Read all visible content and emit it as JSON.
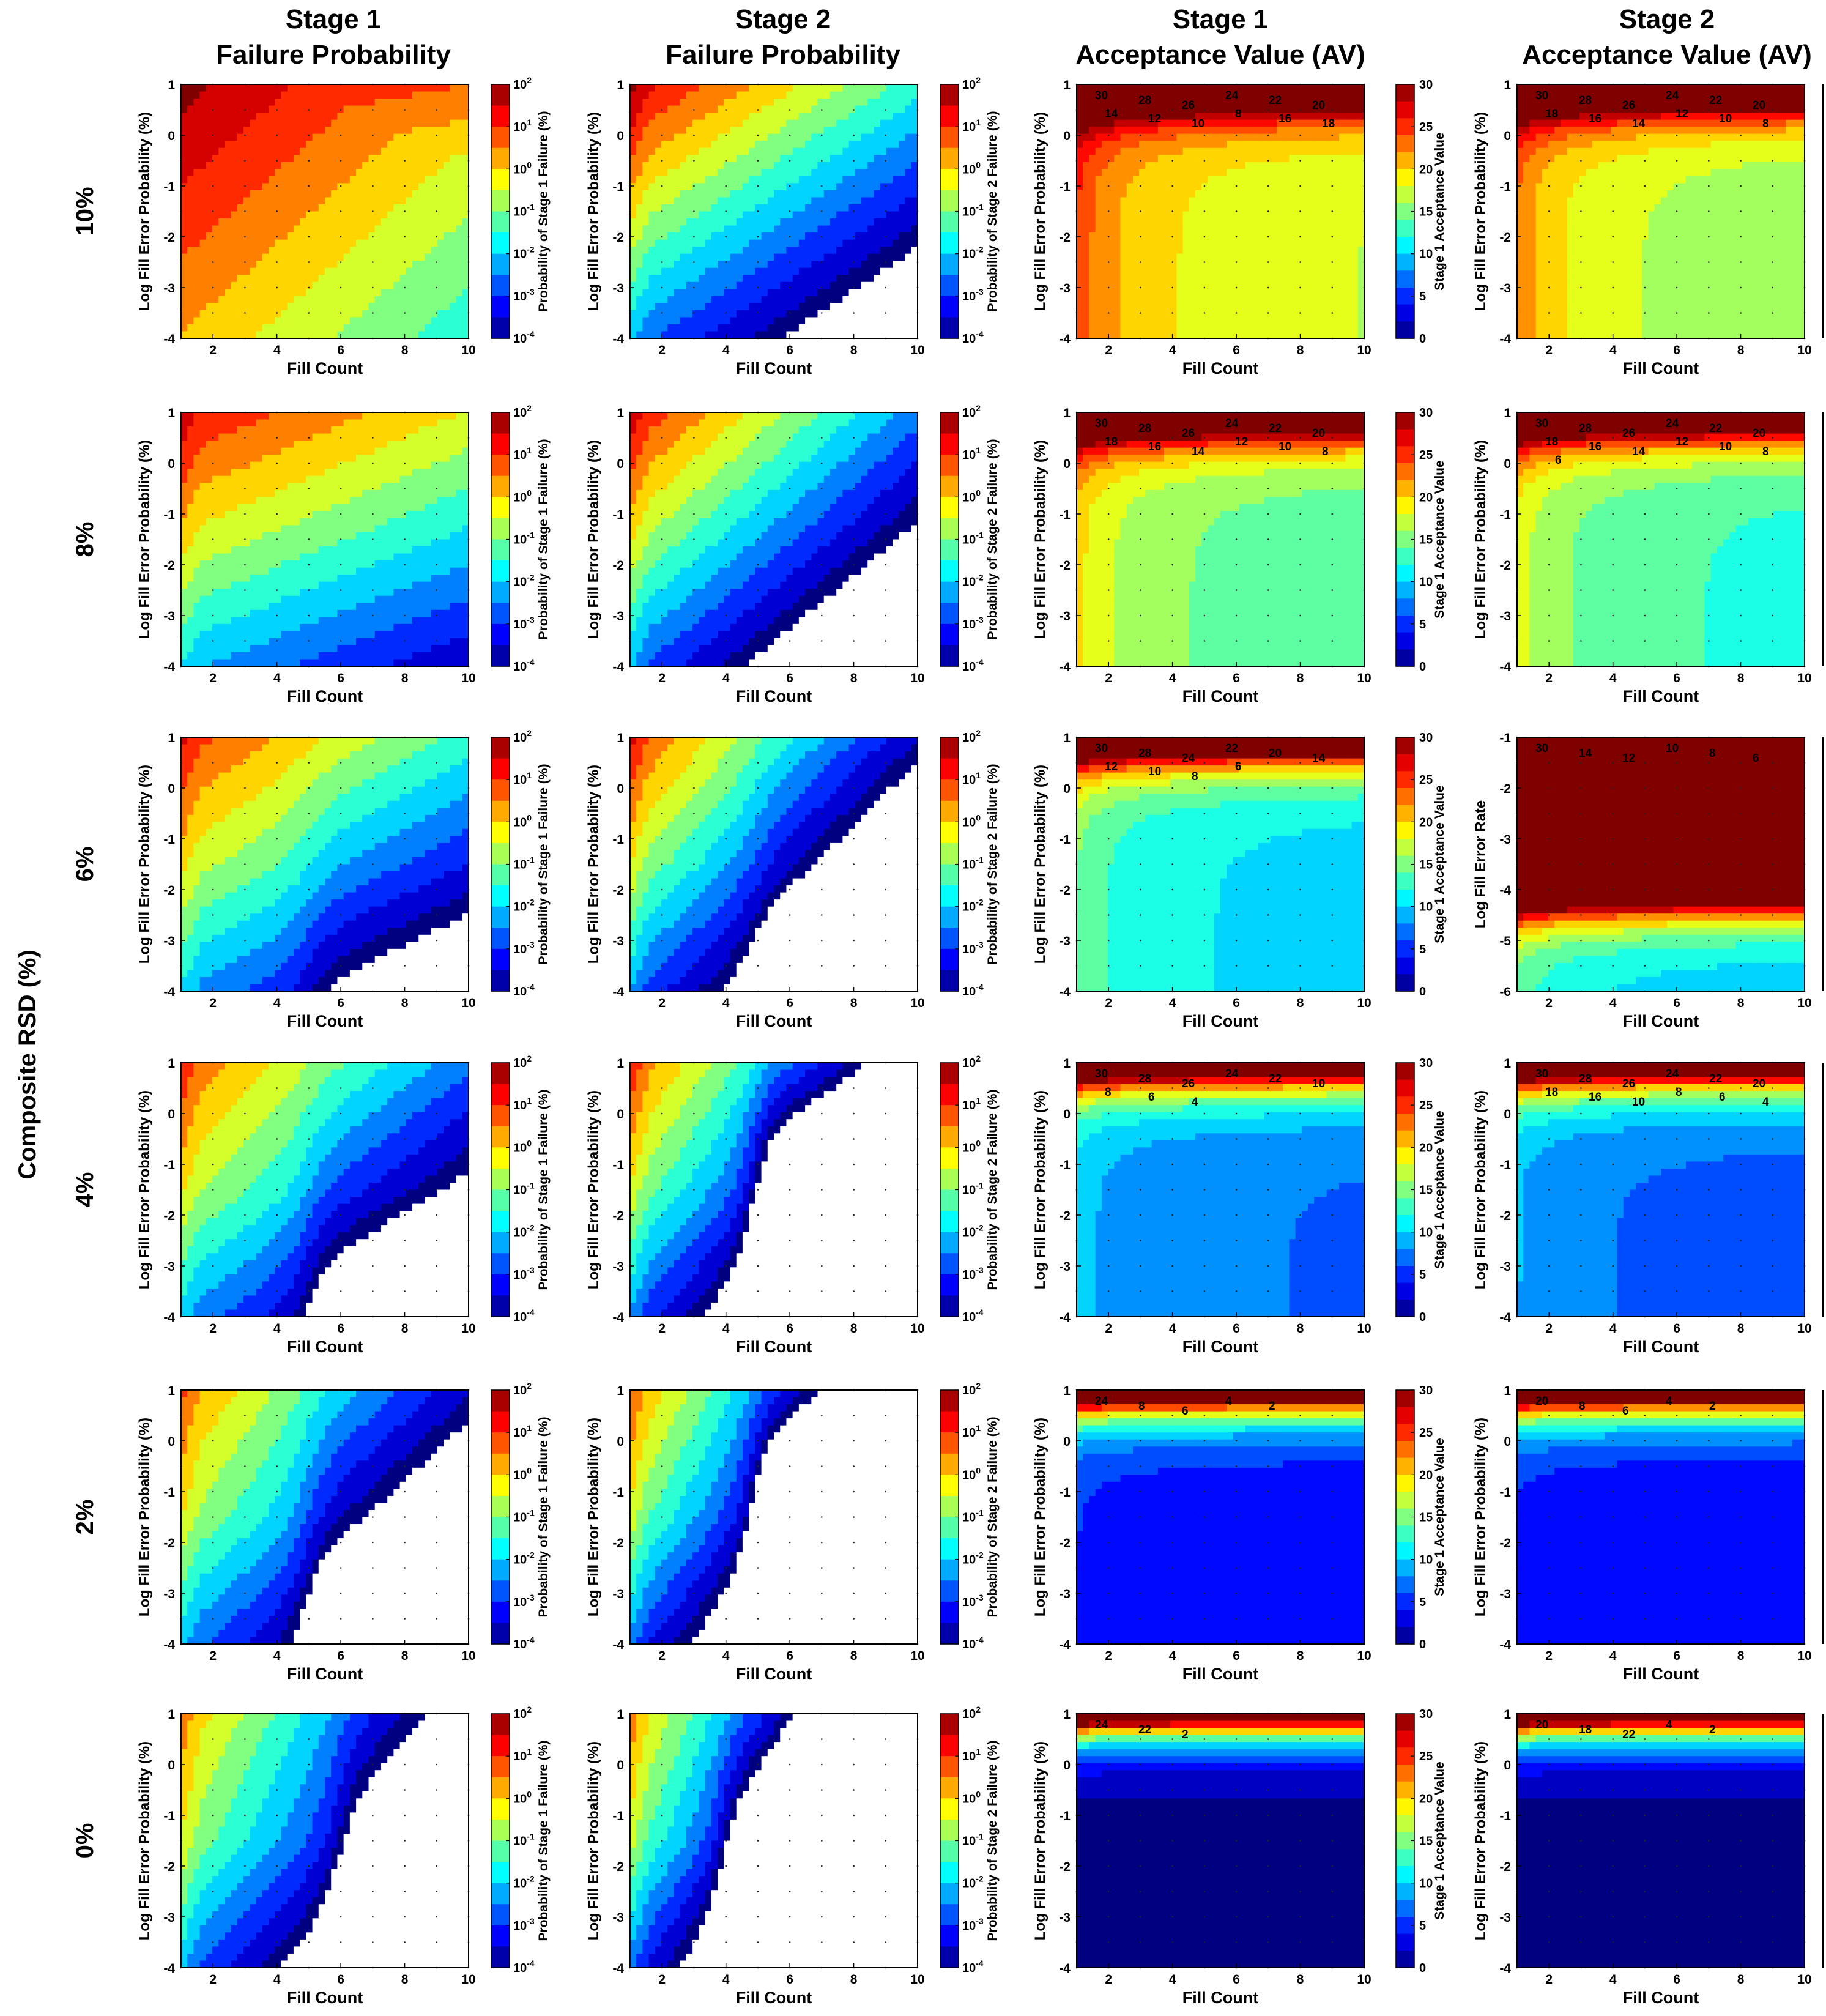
{
  "figure": {
    "side_label": "Composite RSD (%)",
    "column_titles": [
      {
        "line1": "Stage 1",
        "line2": "Failure Probability"
      },
      {
        "line1": "Stage 2",
        "line2": "Failure Probability"
      },
      {
        "line1": "Stage 1",
        "line2": "Acceptance Value (AV)"
      },
      {
        "line1": "Stage 2",
        "line2": "Acceptance Value (AV)"
      }
    ],
    "row_labels": [
      "10%",
      "8%",
      "6%",
      "4%",
      "2%",
      "0%"
    ],
    "colors": {
      "dark_red": "#7f0000",
      "red": "#e81c0b",
      "orange": "#ff8c00",
      "yellow": "#ffee00",
      "green": "#7dff7a",
      "cyan": "#00d8ff",
      "blue": "#0050ff",
      "dark_blue": "#00008f",
      "empty": "#ffffff"
    }
  },
  "chart_data": {
    "type": "contour",
    "description": "4 columns x 6 rows grid of filled contour plots",
    "xlabel": "Fill Count",
    "xticks": [
      2,
      4,
      6,
      8,
      10
    ],
    "xlim": [
      1,
      10
    ],
    "ylabel_default": "Log Fill Error Probability (%)",
    "ylabel_alt": "Log Fill Error Rate",
    "yticks_default": [
      1,
      0,
      -1,
      -2,
      -3,
      -4
    ],
    "ylim_default": [
      -4,
      1
    ],
    "yticks_alt": [
      -1,
      -2,
      -3,
      -4,
      -5,
      -6
    ],
    "ylim_alt": [
      -6,
      -1
    ],
    "alt_axes_panel": {
      "row": "6%",
      "column": 4
    },
    "panels": [
      {
        "column": "Stage 1 Failure Probability",
        "colorbar_label": "Probability of Stage 1 Failure (%)",
        "colorbar_scale": "log",
        "colorbar_ticks": [
          "10^2",
          "10^1",
          "10^0",
          "10^-1",
          "10^-2",
          "10^-3",
          "10^-4"
        ],
        "colorbar_range": [
          -4,
          2
        ]
      },
      {
        "column": "Stage 2 Failure Probability",
        "colorbar_label": "Probability of Stage 2 Failure (%)",
        "colorbar_scale": "log",
        "colorbar_ticks": [
          "10^2",
          "10^1",
          "10^0",
          "10^-1",
          "10^-2",
          "10^-3",
          "10^-4"
        ],
        "colorbar_range": [
          -4,
          2
        ]
      },
      {
        "column": "Stage 1 Acceptance Value (AV)",
        "colorbar_label": "Stage 1 Acceptance Value",
        "colorbar_scale": "linear",
        "colorbar_ticks": [
          "30",
          "25",
          "20",
          "15",
          "10",
          "5",
          "0"
        ],
        "colorbar_range": [
          0,
          30
        ]
      },
      {
        "column": "Stage 2 Acceptance Value (AV)",
        "colorbar_label": "",
        "colorbar_scale": "linear",
        "colorbar_ticks": [],
        "colorbar_range": [
          0,
          30
        ]
      }
    ],
    "av_contour_labels": {
      "stage1": [
        [
          "30",
          "28",
          "26",
          "24",
          "22",
          "20",
          "14",
          "12",
          "10",
          "8",
          "16",
          "18"
        ],
        [
          "30",
          "28",
          "26",
          "24",
          "22",
          "20",
          "18",
          "16",
          "14",
          "12",
          "10",
          "8"
        ],
        [
          "30",
          "28",
          "24",
          "22",
          "20",
          "14",
          "12",
          "10",
          "8",
          "6"
        ],
        [
          "30",
          "28",
          "26",
          "24",
          "22",
          "10",
          "8",
          "6",
          "4"
        ],
        [
          "24",
          "8",
          "6",
          "4",
          "2"
        ],
        [
          "24",
          "22",
          "2"
        ]
      ],
      "stage2": [
        [
          "30",
          "28",
          "26",
          "24",
          "22",
          "20",
          "18",
          "16",
          "14",
          "12",
          "10",
          "8"
        ],
        [
          "30",
          "28",
          "26",
          "24",
          "22",
          "20",
          "18",
          "16",
          "14",
          "12",
          "10",
          "8",
          "6"
        ],
        [
          "30",
          "14",
          "12",
          "10",
          "8",
          "6"
        ],
        [
          "30",
          "28",
          "26",
          "24",
          "22",
          "20",
          "18",
          "16",
          "10",
          "8",
          "6",
          "4"
        ],
        [
          "20",
          "8",
          "6",
          "4",
          "2"
        ],
        [
          "20",
          "18",
          "22",
          "4",
          "2"
        ]
      ]
    }
  }
}
